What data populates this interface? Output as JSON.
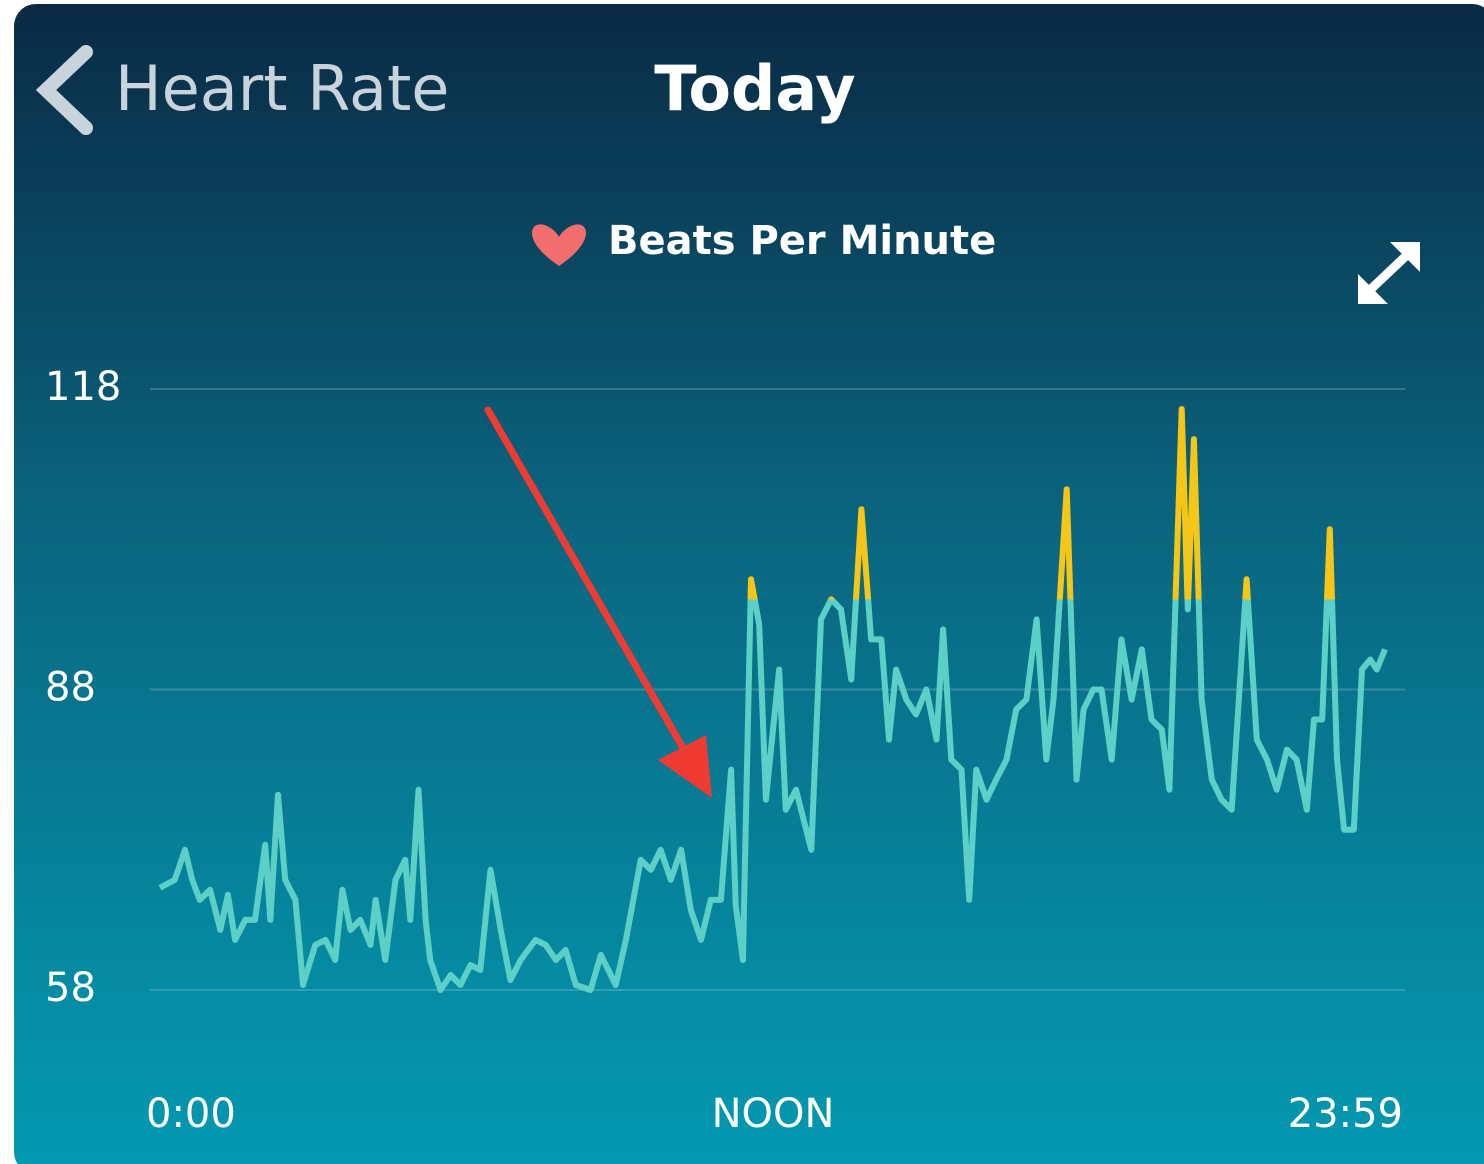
{
  "chart_data": {
    "type": "line",
    "back_label": "Heart Rate",
    "title": "Today",
    "series": [
      {
        "name": "Beats Per Minute",
        "color": "#5ccfc6",
        "values": [
          68.2,
          69,
          72,
          69,
          67,
          68,
          64,
          67.5,
          63,
          65,
          65,
          72.5,
          65,
          77.5,
          69,
          67,
          58.5,
          62.5,
          63,
          61,
          68,
          64,
          65,
          62.5,
          67,
          61,
          69,
          71,
          65,
          78,
          65,
          61,
          58,
          59.5,
          58.5,
          60.5,
          60,
          70,
          64,
          59,
          61,
          63,
          62.5,
          61,
          62,
          58.5,
          58,
          61.5,
          58.5,
          63,
          71,
          70,
          72,
          69,
          72,
          66,
          63,
          67,
          67,
          80,
          66.5,
          61,
          99,
          94.5,
          77,
          90,
          76,
          78,
          72,
          95,
          97,
          96,
          89,
          106,
          93,
          93,
          83,
          90,
          87,
          85.5,
          88,
          83,
          94,
          81,
          80,
          67,
          80,
          77,
          79,
          81,
          86,
          87,
          95,
          81,
          87,
          108,
          79,
          86,
          88,
          88,
          81,
          93,
          87,
          92,
          85,
          84,
          78,
          116,
          96,
          113,
          87,
          79,
          77,
          76,
          99,
          83,
          81,
          78,
          82,
          81,
          76,
          85,
          85,
          104,
          81,
          74,
          74,
          90,
          91,
          90,
          92
        ]
      }
    ],
    "x": [
      0,
      0.29,
      0.49,
      0.63,
      0.78,
      0.98,
      1.18,
      1.33,
      1.47,
      1.67,
      1.86,
      2.06,
      2.16,
      2.31,
      2.45,
      2.65,
      2.8,
      3.04,
      3.24,
      3.43,
      3.57,
      3.73,
      3.92,
      4.12,
      4.22,
      4.41,
      4.61,
      4.8,
      4.9,
      5.06,
      5.2,
      5.29,
      5.49,
      5.69,
      5.88,
      6.08,
      6.27,
      6.47,
      6.67,
      6.86,
      7.06,
      7.35,
      7.55,
      7.75,
      7.94,
      8.14,
      8.43,
      8.63,
      8.92,
      9.12,
      9.41,
      9.61,
      9.8,
      10,
      10.2,
      10.39,
      10.59,
      10.78,
      10.98,
      11.18,
      11.27,
      11.41,
      11.57,
      11.73,
      11.86,
      12.12,
      12.25,
      12.45,
      12.75,
      12.94,
      13.14,
      13.33,
      13.53,
      13.73,
      13.92,
      14.12,
      14.27,
      14.41,
      14.61,
      14.8,
      15,
      15.2,
      15.33,
      15.49,
      15.69,
      15.84,
      15.98,
      16.18,
      16.37,
      16.57,
      16.76,
      16.96,
      17.16,
      17.35,
      17.49,
      17.75,
      17.94,
      18.08,
      18.27,
      18.43,
      18.63,
      18.82,
      19.02,
      19.22,
      19.41,
      19.61,
      19.76,
      20,
      20.12,
      20.24,
      20.39,
      20.59,
      20.78,
      20.98,
      21.27,
      21.47,
      21.67,
      21.86,
      22.06,
      22.25,
      22.45,
      22.59,
      22.75,
      22.9,
      23.04,
      23.18,
      23.37,
      23.53,
      23.69,
      23.82,
      23.98
    ],
    "xlim": [
      0,
      23.98
    ],
    "xticks": [
      {
        "value": 0,
        "label": "0:00"
      },
      {
        "value": 12,
        "label": "NOON"
      },
      {
        "value": 23.98,
        "label": "23:59"
      }
    ],
    "ylim": [
      58,
      118
    ],
    "yticks": [
      58,
      88,
      118
    ],
    "grid": true,
    "highlight_above": 97,
    "highlight_color": "#f5c518"
  }
}
